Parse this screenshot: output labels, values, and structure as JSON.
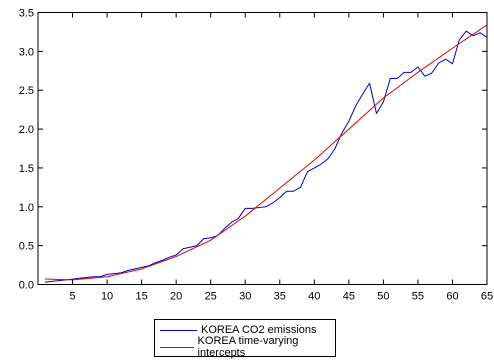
{
  "chart_data": {
    "type": "line",
    "xlim": [
      0,
      65
    ],
    "ylim": [
      0,
      3.5
    ],
    "x_ticks": [
      5,
      10,
      15,
      20,
      25,
      30,
      35,
      40,
      45,
      50,
      55,
      60,
      65
    ],
    "y_ticks": [
      "0.0",
      "0.5",
      "1.0",
      "1.5",
      "2.0",
      "2.5",
      "3.0",
      "3.5"
    ],
    "grid": false,
    "legend_position": "bottom-center",
    "series": [
      {
        "name": "KOREA CO2 emissions",
        "color": "#0000cc",
        "x": [
          1,
          2,
          3,
          4,
          5,
          6,
          7,
          8,
          9,
          10,
          11,
          12,
          13,
          14,
          15,
          16,
          17,
          18,
          19,
          20,
          21,
          22,
          23,
          24,
          25,
          26,
          27,
          28,
          29,
          30,
          31,
          32,
          33,
          34,
          35,
          36,
          37,
          38,
          39,
          40,
          41,
          42,
          43,
          44,
          45,
          46,
          47,
          48,
          49,
          50,
          51,
          52,
          53,
          54,
          55,
          56,
          57,
          58,
          59,
          60,
          61,
          62,
          63,
          64,
          65
        ],
        "y": [
          0.03,
          0.04,
          0.05,
          0.06,
          0.07,
          0.08,
          0.09,
          0.1,
          0.1,
          0.13,
          0.14,
          0.15,
          0.18,
          0.2,
          0.22,
          0.24,
          0.28,
          0.31,
          0.35,
          0.38,
          0.46,
          0.48,
          0.5,
          0.59,
          0.6,
          0.63,
          0.72,
          0.8,
          0.85,
          0.98,
          0.98,
          0.99,
          1.0,
          1.05,
          1.12,
          1.2,
          1.2,
          1.25,
          1.45,
          1.5,
          1.55,
          1.62,
          1.75,
          1.95,
          2.1,
          2.3,
          2.45,
          2.59,
          2.2,
          2.35,
          2.65,
          2.65,
          2.73,
          2.73,
          2.8,
          2.68,
          2.72,
          2.85,
          2.9,
          2.84,
          3.15,
          3.26,
          3.2,
          3.24,
          3.18
        ]
      },
      {
        "name": "KOREA time-varying intercepts",
        "color": "#dd0000",
        "x": [
          1,
          5,
          10,
          15,
          20,
          25,
          30,
          35,
          40,
          45,
          50,
          55,
          60,
          65
        ],
        "y": [
          0.07,
          0.06,
          0.1,
          0.2,
          0.36,
          0.57,
          0.88,
          1.24,
          1.6,
          2.0,
          2.4,
          2.73,
          3.04,
          3.34
        ]
      }
    ]
  }
}
